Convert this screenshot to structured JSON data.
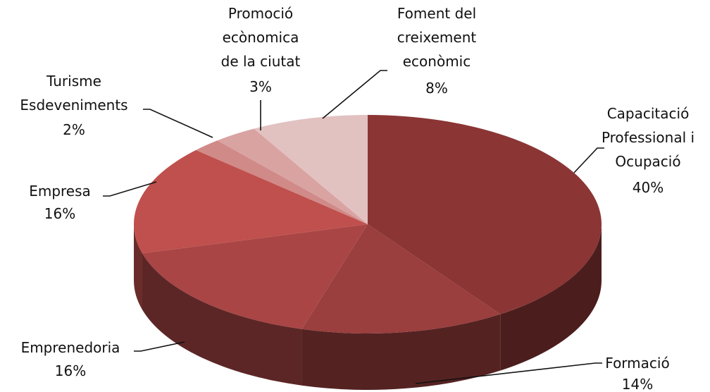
{
  "chart_data": {
    "type": "pie3d",
    "categories": [
      "Capacitació\nProfessional i\nOcupació",
      "Formació",
      "Emprenedoria",
      "Empresa",
      "Turisme\nEsdeveniments",
      "Promoció\necònomica\nde la ciutat",
      "Foment del\ncreixement\neconòmic"
    ],
    "values": [
      40,
      14,
      16,
      16,
      2,
      3,
      8
    ],
    "value_labels": [
      "40%",
      "14%",
      "16%",
      "16%",
      "2%",
      "3%",
      "8%"
    ],
    "colors": [
      "#8b3535",
      "#9a3e3e",
      "#a94545",
      "#c0504d",
      "#d08a88",
      "#d9a3a2",
      "#e2c1c1"
    ]
  }
}
